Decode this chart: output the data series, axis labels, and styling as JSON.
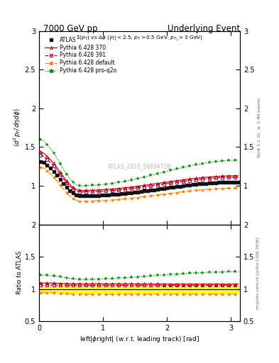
{
  "title_left": "7000 GeV pp",
  "title_right": "Underlying Event",
  "annotation": "ATLAS_2010_S8894728",
  "subtitle": "$\\Sigma(p_T)$ vs $\\Delta\\phi$ ($|\\eta| < 2.5$, $p_T > 0.5$ GeV, $p_{T_1} > 3$ GeV)",
  "ylabel_main": "$\\langle d^2 p_T / d\\eta d\\phi \\rangle$",
  "ylabel_ratio": "Ratio to ATLAS",
  "xlabel": "left$|\\phi$right$|$ (w.r.t. leading track) [rad]",
  "right_label_top": "Rivet 3.1.10, $\\geq$ 3.4M events",
  "right_label_bottom": "mcplots.cern.ch [arXiv:1306.3436]",
  "ylim_main": [
    0.5,
    3.0
  ],
  "ylim_ratio": [
    0.5,
    2.0
  ],
  "xlim": [
    0.0,
    3.14159
  ],
  "yticks_main": [
    1.0,
    1.5,
    2.0,
    2.5,
    3.0
  ],
  "yticks_ratio": [
    0.5,
    1.0,
    1.5,
    2.0
  ],
  "colors": {
    "atlas": "#111111",
    "py370": "#CC0000",
    "py391": "#990055",
    "pydef": "#FF8800",
    "pyq2o": "#008800"
  },
  "atlas_band_color": "#FFFF00",
  "legend_entries": [
    "ATLAS",
    "Pythia 6.428 370",
    "Pythia 6.428 391",
    "Pythia 6.428 default",
    "Pythia 6.428 pro-q2o"
  ]
}
